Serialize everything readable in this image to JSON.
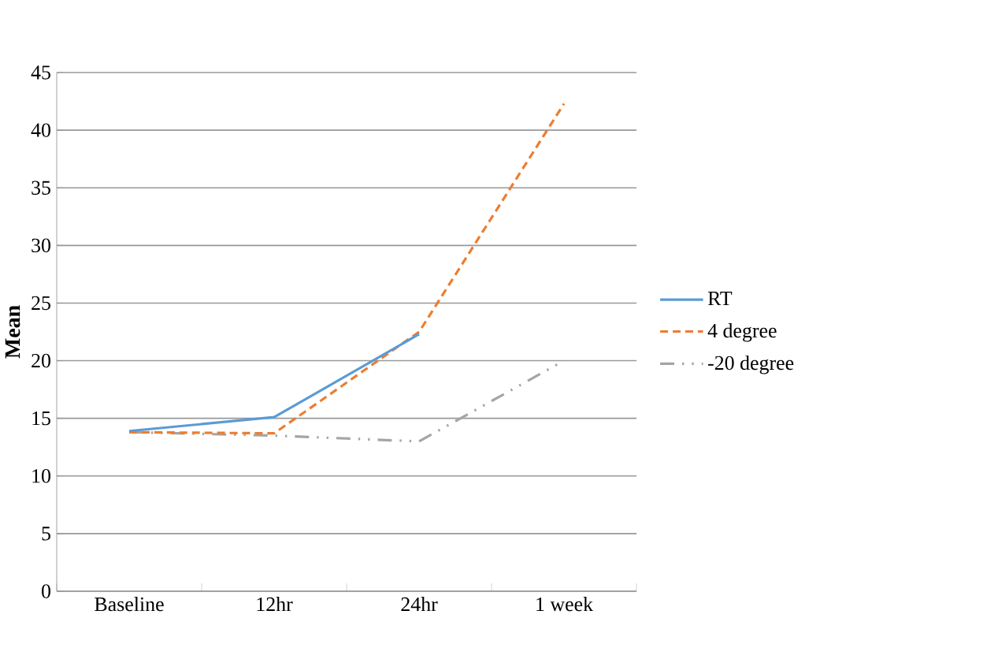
{
  "chart_data": {
    "type": "line",
    "ylabel": "Mean",
    "categories": [
      "Baseline",
      "12hr",
      "24hr",
      "1 week"
    ],
    "series": [
      {
        "name": "RT",
        "color": "#5b9bd5",
        "line_style": "solid",
        "values": [
          13.9,
          15.1,
          22.3,
          null
        ]
      },
      {
        "name": "4 degree",
        "color": "#ed7d31",
        "line_style": "dashed",
        "values": [
          13.8,
          13.7,
          22.5,
          42.3
        ]
      },
      {
        "name": "-20 degree",
        "color": "#a5a5a5",
        "line_style": "dashdotdotted",
        "values": [
          13.8,
          13.5,
          13.0,
          20.0
        ]
      }
    ],
    "ylim": [
      0,
      45
    ],
    "yticks": [
      0,
      5,
      10,
      15,
      20,
      25,
      30,
      35,
      40,
      45
    ],
    "grid": "y",
    "legend": "right",
    "marker": "none"
  }
}
